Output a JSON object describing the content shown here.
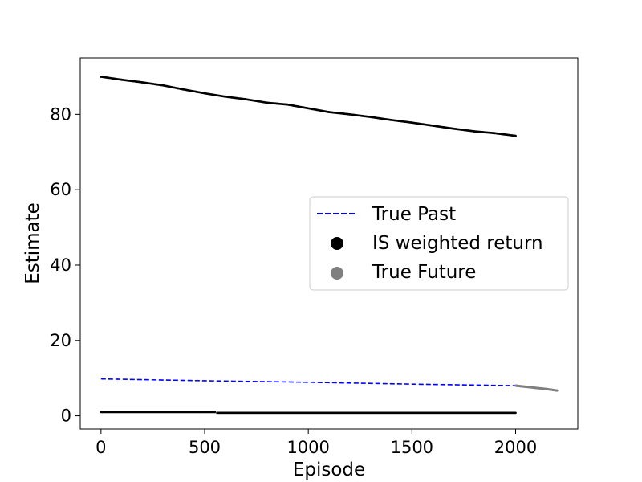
{
  "chart_data": {
    "type": "scatter",
    "title": "",
    "xlabel": "Episode",
    "ylabel": "Estimate",
    "xlim": [
      -100,
      2300
    ],
    "ylim": [
      -3.5,
      95
    ],
    "xticks": [
      0,
      500,
      1000,
      1500,
      2000
    ],
    "yticks": [
      0,
      20,
      40,
      60,
      80
    ],
    "xtick_labels": [
      "0",
      "500",
      "1000",
      "1500",
      "2000"
    ],
    "ytick_labels": [
      "0",
      "20",
      "40",
      "60",
      "80"
    ],
    "grid": false,
    "legend": {
      "placement": "center-right",
      "entries": [
        "True Past",
        "IS weighted return",
        "True Future"
      ]
    },
    "series": [
      {
        "name": "True Past",
        "style": "dashed-line",
        "color": "#0000ff",
        "x": [
          0,
          500,
          1000,
          1500,
          2000
        ],
        "y": [
          9.8,
          9.3,
          8.9,
          8.4,
          8.0
        ]
      },
      {
        "name": "IS weighted return",
        "style": "points",
        "color": "#000000",
        "segments": [
          {
            "x": [
              0,
              100,
              200,
              300,
              400,
              500,
              600,
              700,
              800,
              900,
              1000,
              1100,
              1200,
              1300,
              1400,
              1500,
              1600,
              1700,
              1800,
              1900,
              2000
            ],
            "y": [
              90.0,
              89.2,
              88.5,
              87.7,
              86.6,
              85.6,
              84.7,
              84.0,
              83.1,
              82.6,
              81.6,
              80.6,
              80.0,
              79.3,
              78.5,
              77.8,
              77.0,
              76.2,
              75.5,
              75.0,
              74.3
            ]
          },
          {
            "x": [
              0,
              550
            ],
            "y": [
              1.0,
              1.0
            ]
          },
          {
            "x": [
              560,
              2000
            ],
            "y": [
              0.8,
              0.8
            ]
          }
        ]
      },
      {
        "name": "True Future",
        "style": "points",
        "color": "#808080",
        "x": [
          2000,
          2050,
          2100,
          2150,
          2200
        ],
        "y": [
          8.0,
          7.7,
          7.4,
          7.1,
          6.7
        ]
      }
    ]
  }
}
